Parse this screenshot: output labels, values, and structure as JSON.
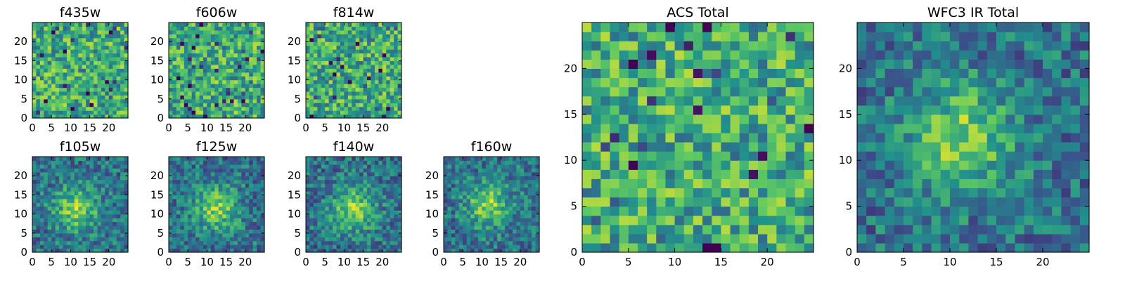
{
  "chart_data": [
    {
      "type": "heatmap",
      "title": "f435w",
      "grid_size": 25,
      "xticks": [
        0,
        5,
        10,
        15,
        20
      ],
      "yticks": [
        0,
        5,
        10,
        15,
        20
      ],
      "xlim": [
        0,
        25
      ],
      "ylim": [
        0,
        25
      ],
      "structure": "noise",
      "seed": 11
    },
    {
      "type": "heatmap",
      "title": "f606w",
      "grid_size": 25,
      "xticks": [
        0,
        5,
        10,
        15,
        20
      ],
      "yticks": [
        0,
        5,
        10,
        15,
        20
      ],
      "xlim": [
        0,
        25
      ],
      "ylim": [
        0,
        25
      ],
      "structure": "noise",
      "seed": 23
    },
    {
      "type": "heatmap",
      "title": "f814w",
      "grid_size": 25,
      "xticks": [
        0,
        5,
        10,
        15,
        20
      ],
      "yticks": [
        0,
        5,
        10,
        15,
        20
      ],
      "xlim": [
        0,
        25
      ],
      "ylim": [
        0,
        25
      ],
      "structure": "noise",
      "seed": 37
    },
    {
      "type": "heatmap",
      "title": "f105w",
      "grid_size": 25,
      "xticks": [
        0,
        5,
        10,
        15,
        20
      ],
      "yticks": [
        0,
        5,
        10,
        15,
        20
      ],
      "xlim": [
        0,
        25
      ],
      "ylim": [
        0,
        25
      ],
      "structure": "central-source",
      "center": [
        11,
        11
      ],
      "seed": 41
    },
    {
      "type": "heatmap",
      "title": "f125w",
      "grid_size": 25,
      "xticks": [
        0,
        5,
        10,
        15,
        20
      ],
      "yticks": [
        0,
        5,
        10,
        15,
        20
      ],
      "xlim": [
        0,
        25
      ],
      "ylim": [
        0,
        25
      ],
      "structure": "central-source",
      "center": [
        12,
        11
      ],
      "seed": 53
    },
    {
      "type": "heatmap",
      "title": "f140w",
      "grid_size": 25,
      "xticks": [
        0,
        5,
        10,
        15,
        20
      ],
      "yticks": [
        0,
        5,
        10,
        15,
        20
      ],
      "xlim": [
        0,
        25
      ],
      "ylim": [
        0,
        25
      ],
      "structure": "central-source",
      "center": [
        12,
        11
      ],
      "seed": 67
    },
    {
      "type": "heatmap",
      "title": "f160w",
      "grid_size": 25,
      "xticks": [
        0,
        5,
        10,
        15,
        20
      ],
      "yticks": [
        0,
        5,
        10,
        15,
        20
      ],
      "xlim": [
        0,
        25
      ],
      "ylim": [
        0,
        25
      ],
      "structure": "central-source",
      "center": [
        11,
        12
      ],
      "seed": 79
    },
    {
      "type": "heatmap",
      "title": "ACS Total",
      "grid_size": 25,
      "xticks": [
        0,
        5,
        10,
        15,
        20
      ],
      "yticks": [
        0,
        5,
        10,
        15,
        20
      ],
      "xlim": [
        0,
        25
      ],
      "ylim": [
        0,
        25
      ],
      "structure": "noise",
      "seed": 97
    },
    {
      "type": "heatmap",
      "title": "WFC3 IR Total",
      "grid_size": 25,
      "xticks": [
        0,
        5,
        10,
        15,
        20
      ],
      "yticks": [
        0,
        5,
        10,
        15,
        20
      ],
      "xlim": [
        0,
        25
      ],
      "ylim": [
        0,
        25
      ],
      "structure": "central-source",
      "center": [
        11,
        12
      ],
      "seed": 101
    }
  ],
  "colormap": [
    "#440154",
    "#3b528b",
    "#21918c",
    "#5ec962",
    "#fde725"
  ]
}
